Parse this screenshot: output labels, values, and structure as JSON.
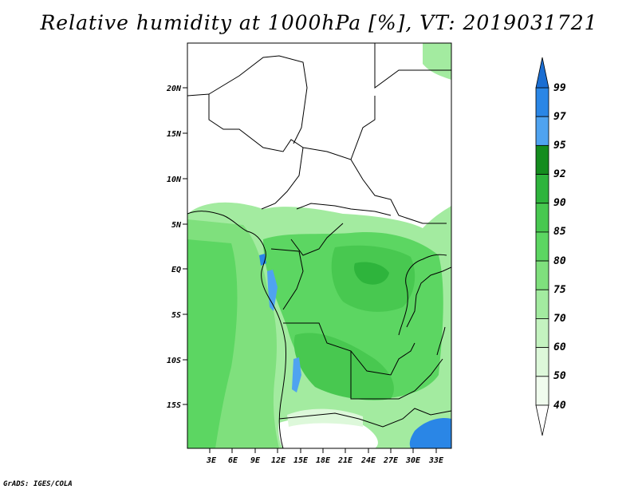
{
  "title": "Relative humidity at 1000hPa [%], VT: 2019031721",
  "credit": "GrADS: IGES/COLA",
  "map": {
    "lat_labels": [
      "20N",
      "15N",
      "10N",
      "5N",
      "EQ",
      "5S",
      "10S",
      "15S"
    ],
    "lon_labels": [
      "3E",
      "6E",
      "9E",
      "12E",
      "15E",
      "18E",
      "21E",
      "24E",
      "27E",
      "30E",
      "33E"
    ]
  },
  "colorbar": {
    "labels": [
      "99",
      "97",
      "95",
      "92",
      "90",
      "85",
      "80",
      "75",
      "70",
      "60",
      "50",
      "40"
    ],
    "colors": [
      "#1a6ed2",
      "#2a86e6",
      "#4fa3f0",
      "#148c1e",
      "#2eb43c",
      "#48c850",
      "#5cd662",
      "#7fe07d",
      "#a3eba0",
      "#c4f3c0",
      "#ddf8da",
      "#f0fcee",
      "#ffffff"
    ]
  }
}
